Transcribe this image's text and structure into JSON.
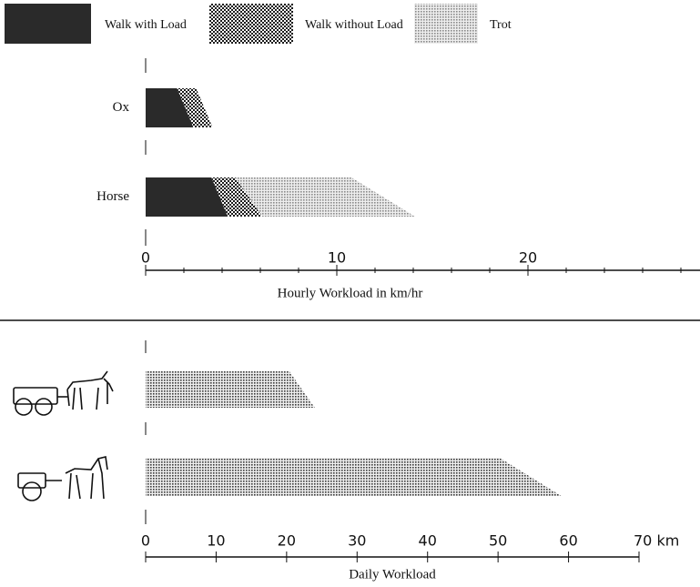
{
  "chart_data": [
    {
      "type": "stacked-bar-h",
      "categories": [
        "Ox",
        "Horse"
      ],
      "series": [
        {
          "name": "Walk with Load",
          "color": "#2a2a2a",
          "fill_style": "solid",
          "values": [
            2.5,
            4.3
          ]
        },
        {
          "name": "Walk without Load",
          "color": "#1a1a1a",
          "fill_style": "checker",
          "values": [
            1.0,
            1.8
          ]
        },
        {
          "name": "Trot",
          "color": "#8a8a8a",
          "fill_style": "dots",
          "values": [
            0,
            8.0
          ]
        }
      ],
      "xlabel": "Hourly Workload in km/hr",
      "xlim": [
        0,
        29
      ],
      "xticks": [
        0,
        10,
        20
      ],
      "xminorticks": [
        2,
        4,
        6,
        8,
        12,
        14,
        16,
        18,
        22,
        24,
        26,
        28
      ]
    },
    {
      "type": "bar-h",
      "categories": [
        null,
        null
      ],
      "values": [
        24,
        59
      ],
      "color": "#3a3a3a",
      "fill_style": "dots",
      "xlabel": "Daily Workload",
      "xlim": [
        0,
        70
      ],
      "xticks": [
        0,
        10,
        20,
        30,
        40,
        50,
        60,
        {
          "value": 70,
          "label": "70 km"
        }
      ]
    }
  ]
}
